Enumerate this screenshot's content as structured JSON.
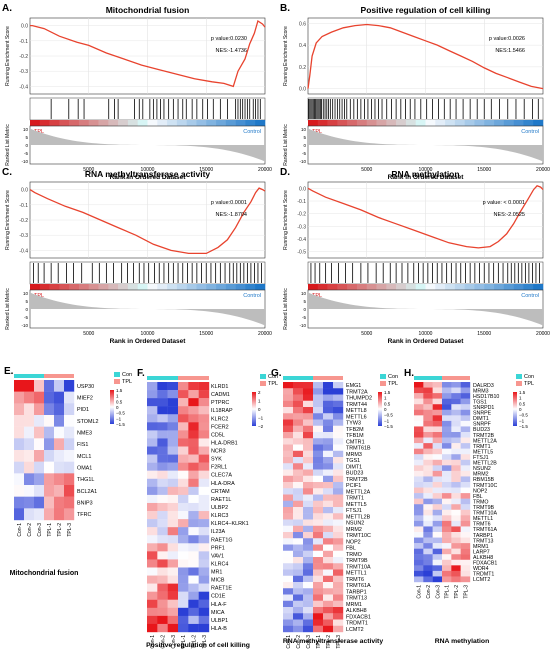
{
  "gsea_panels": [
    {
      "letter": "A.",
      "title": "Mitochondrial fusion",
      "pvalue_label": "p value:0.0230",
      "nes_label": "NES:-1.4736",
      "y_ticks": [
        "0.0",
        "-0.1",
        "-0.2",
        "-0.3",
        "-0.4"
      ],
      "ylim": [
        -0.45,
        0.05
      ],
      "curve": [
        [
          0,
          0
        ],
        [
          200,
          0
        ],
        [
          1200,
          -0.02
        ],
        [
          2500,
          -0.07
        ],
        [
          4000,
          -0.11
        ],
        [
          5000,
          -0.13
        ],
        [
          6500,
          -0.18
        ],
        [
          8000,
          -0.22
        ],
        [
          9500,
          -0.26
        ],
        [
          11000,
          -0.29
        ],
        [
          12500,
          -0.32
        ],
        [
          14000,
          -0.35
        ],
        [
          15500,
          -0.37
        ],
        [
          16500,
          -0.38
        ],
        [
          17300,
          -0.4
        ],
        [
          17700,
          -0.3
        ],
        [
          18300,
          -0.22
        ],
        [
          18700,
          -0.12
        ],
        [
          19100,
          -0.05
        ],
        [
          19400,
          0.03
        ],
        [
          19800,
          0.01
        ],
        [
          20000,
          -0.01
        ]
      ],
      "hits": [
        1800,
        3300,
        4100,
        4600,
        6700,
        7200,
        7500,
        8900,
        9300,
        9600,
        10200,
        10500,
        10800,
        11100,
        11400,
        11800,
        12200,
        12600,
        13000,
        13300,
        13800,
        14200,
        14700,
        15100,
        15600,
        16200,
        16800,
        17500,
        17700,
        17900,
        18100,
        18300,
        18500,
        18700,
        19000,
        19200,
        19400,
        19600
      ]
    },
    {
      "letter": "B.",
      "title": "Positive regulation of cell killing",
      "pvalue_label": "p value:0.0026",
      "nes_label": "NES:1.5466",
      "y_ticks": [
        "0.6",
        "0.4",
        "0.2",
        "0.0"
      ],
      "ylim": [
        -0.05,
        0.65
      ],
      "curve": [
        [
          0,
          0
        ],
        [
          150,
          0.12
        ],
        [
          350,
          0.3
        ],
        [
          700,
          0.42
        ],
        [
          1200,
          0.48
        ],
        [
          2000,
          0.52
        ],
        [
          3000,
          0.56
        ],
        [
          4000,
          0.58
        ],
        [
          5000,
          0.59
        ],
        [
          6000,
          0.58
        ],
        [
          7000,
          0.56
        ],
        [
          8000,
          0.52
        ],
        [
          9000,
          0.48
        ],
        [
          10000,
          0.44
        ],
        [
          11000,
          0.4
        ],
        [
          12000,
          0.35
        ],
        [
          13000,
          0.3
        ],
        [
          14000,
          0.25
        ],
        [
          15000,
          0.19
        ],
        [
          16000,
          0.14
        ],
        [
          17000,
          0.1
        ],
        [
          18000,
          0.06
        ],
        [
          19000,
          0.02
        ],
        [
          20000,
          0
        ]
      ],
      "hits": [
        50,
        150,
        250,
        350,
        450,
        550,
        650,
        750,
        850,
        950,
        1050,
        1150,
        1300,
        1450,
        1600,
        1750,
        1900,
        2100,
        2300,
        2500,
        2700,
        2900,
        3100,
        3300,
        3600,
        3900,
        4200,
        4500,
        4800,
        5100,
        5400,
        5700,
        6000,
        6300,
        6700,
        7100,
        7500,
        7900,
        8300,
        8700,
        9100,
        9600,
        10100,
        10600,
        11100,
        11600,
        12100,
        12600,
        13200,
        13800,
        14400,
        15000,
        15600,
        16300,
        17000,
        17700,
        18400,
        19100,
        19600
      ]
    },
    {
      "letter": "C.",
      "title": "RNA methyltransferase activity",
      "pvalue_label": "p value:0.0001",
      "nes_label": "NES:-1.8704",
      "y_ticks": [
        "0.0",
        "-0.1",
        "-0.2",
        "-0.3",
        "-0.4"
      ],
      "ylim": [
        -0.45,
        0.05
      ],
      "curve": [
        [
          0,
          0
        ],
        [
          400,
          -0.02
        ],
        [
          1500,
          -0.06
        ],
        [
          3000,
          -0.11
        ],
        [
          4500,
          -0.15
        ],
        [
          6000,
          -0.2
        ],
        [
          7500,
          -0.25
        ],
        [
          9000,
          -0.3
        ],
        [
          10500,
          -0.36
        ],
        [
          12000,
          -0.4
        ],
        [
          13500,
          -0.42
        ],
        [
          15000,
          -0.42
        ],
        [
          16000,
          -0.38
        ],
        [
          16800,
          -0.33
        ],
        [
          17500,
          -0.25
        ],
        [
          18200,
          -0.15
        ],
        [
          18800,
          -0.08
        ],
        [
          19200,
          -0.02
        ],
        [
          19500,
          0.01
        ],
        [
          19800,
          0
        ],
        [
          20000,
          -0.01
        ]
      ],
      "hits": [
        300,
        700,
        1200,
        1800,
        2400,
        3100,
        3700,
        4400,
        5300,
        5900,
        6500,
        7100,
        7800,
        8300,
        8800,
        9300,
        9700,
        10100,
        10600,
        11000,
        11400,
        11800,
        12200,
        12600,
        13000,
        13400,
        13800,
        14200,
        14600,
        15000,
        15400,
        15800,
        16200,
        16600,
        17000,
        17300,
        17600,
        17900,
        18200,
        18500,
        18800,
        19100,
        19400,
        19700
      ]
    },
    {
      "letter": "D.",
      "title": "RNA methylation",
      "pvalue_label": "p value: < 0.0001",
      "nes_label": "NES:-2.0525",
      "y_ticks": [
        "0.0",
        "-0.1",
        "-0.2",
        "-0.3",
        "-0.4",
        "-0.5"
      ],
      "ylim": [
        -0.55,
        0.05
      ],
      "curve": [
        [
          0,
          0
        ],
        [
          400,
          -0.02
        ],
        [
          1500,
          -0.07
        ],
        [
          3000,
          -0.12
        ],
        [
          4500,
          -0.17
        ],
        [
          6000,
          -0.23
        ],
        [
          7500,
          -0.28
        ],
        [
          9000,
          -0.33
        ],
        [
          10500,
          -0.38
        ],
        [
          12000,
          -0.43
        ],
        [
          13500,
          -0.46
        ],
        [
          14500,
          -0.47
        ],
        [
          15500,
          -0.46
        ],
        [
          16200,
          -0.42
        ],
        [
          16900,
          -0.36
        ],
        [
          17500,
          -0.28
        ],
        [
          18100,
          -0.18
        ],
        [
          18700,
          -0.09
        ],
        [
          19200,
          -0.01
        ],
        [
          19500,
          0.02
        ],
        [
          19800,
          0.01
        ],
        [
          20000,
          -0.01
        ]
      ],
      "hits": [
        250,
        600,
        1000,
        1500,
        2000,
        2600,
        3200,
        3800,
        4500,
        5100,
        5800,
        6400,
        7000,
        7500,
        8000,
        8500,
        9000,
        9400,
        9800,
        10200,
        10600,
        11000,
        11400,
        11800,
        12200,
        12600,
        13000,
        13400,
        13800,
        14200,
        14600,
        15000,
        15400,
        15800,
        16200,
        16600,
        17000,
        17300,
        17600,
        17900,
        18200,
        18500,
        18800,
        19100,
        19400,
        19700
      ]
    }
  ],
  "gsea_common": {
    "ylabel_top": "Running Enrichment Score",
    "ylabel_bottom": "Ranked List Metric",
    "xlabel": "Rank in Ordered Dataset",
    "x_ticks": [
      "5000",
      "10000",
      "15000",
      "20000"
    ],
    "metric_ticks": [
      "10",
      "5",
      "0",
      "-5",
      "-10"
    ],
    "tpl_label": "TPL",
    "control_label": "Control",
    "colors": {
      "curve": "#e8432e",
      "tpl": "#d7191c",
      "control": "#1f78c8",
      "metric_fill": "#bdbdbd"
    }
  },
  "heatmaps": [
    {
      "letter": "E.",
      "caption": "Mitochondrial fusion",
      "genes": [
        "USP30",
        "MIEF2",
        "PID1",
        "STOML2",
        "NME3",
        "FIS1",
        "MCL1",
        "OMA1",
        "THG1L",
        "BCL2A1",
        "BNIP3",
        "TFRC"
      ],
      "samples": [
        "Con-1",
        "Con-2",
        "Con-3",
        "TPL-1",
        "TPL-2",
        "TPL-3"
      ],
      "scale_ticks": [
        "1.5",
        "1",
        "0.5",
        "0",
        "−0.5",
        "−1",
        "−1.5"
      ],
      "legend": [
        "Con",
        "TPL"
      ]
    },
    {
      "letter": "F.",
      "caption": "Positive regulation of cell killing",
      "genes": [
        "KLRD1",
        "CADM1",
        "PTPRC",
        "IL18RAP",
        "KLRC2",
        "FCER2",
        "CD5L",
        "HLA-DRB1",
        "NCR3",
        "SYK",
        "F2RL1",
        "CLEC7A",
        "HLA-DRA",
        "CRTAM",
        "RAET1L",
        "ULBP2",
        "KLRC3",
        "KLRC4−KLRK1",
        "IL23A",
        "RAET1G",
        "PRF1",
        "VAV1",
        "KLRC4",
        "MR1",
        "MICB",
        "RAET1E",
        "CD1E",
        "HLA-F",
        "MICA",
        "ULBP1",
        "HLA-B"
      ],
      "samples": [
        "Con-1",
        "Con-2",
        "Con-3",
        "TPL-1",
        "TPL-2",
        "TPL-3"
      ],
      "scale_ticks": [
        "2",
        "1",
        "0",
        "−1",
        "−2"
      ],
      "legend": [
        "Con",
        "TPL"
      ]
    },
    {
      "letter": "G.",
      "caption": "RNA methyltransferase activity",
      "genes": [
        "EMG1",
        "TRMT2A",
        "THUMPD2",
        "TRMT44",
        "METTL8",
        "METTL6",
        "TYW3",
        "TFB2M",
        "TFB1M",
        "CMTR1",
        "TRMT61B",
        "MRM3",
        "TGS1",
        "DIMT1",
        "BUD23",
        "TRMT2B",
        "PCIF1",
        "METTL2A",
        "TRMT1",
        "METTL5",
        "FTSJ1",
        "METTL2B",
        "NSUN2",
        "MRM2",
        "TRMT10C",
        "NOP2",
        "FBL",
        "TRMO",
        "TRMT9B",
        "TRMT10A",
        "METTL1",
        "TRMT6",
        "TRMT61A",
        "TARBP1",
        "TRMT13",
        "MRM1",
        "ALKBH8",
        "FDXACB1",
        "TRDMT1",
        "LCMT2"
      ],
      "samples": [
        "Con-1",
        "Con-2",
        "Con-3",
        "TPL-1",
        "TPL-2",
        "TPL-3"
      ],
      "scale_ticks": [
        "1.5",
        "1",
        "0.5",
        "0",
        "−0.5",
        "−1",
        "−1.5"
      ],
      "legend": [
        "Con",
        "TPL"
      ]
    },
    {
      "letter": "H.",
      "caption": "RNA methylation",
      "genes": [
        "DALRD3",
        "MRM3",
        "HSD17B10",
        "TGS1",
        "SNRPD1",
        "SNRPE",
        "DIMT1",
        "SNRPF",
        "BUD23",
        "TRMT2B",
        "METTL2A",
        "TRMT1",
        "METTL5",
        "FTSJ1",
        "METTL2B",
        "NSUN2",
        "MRM2",
        "RBM15B",
        "TRMT10C",
        "NOP2",
        "FBL",
        "TRMO",
        "TRMT9B",
        "TRMT10A",
        "METTL1",
        "TRMT6",
        "TRMT61A",
        "TARBP1",
        "TRMT13",
        "MRM1",
        "LARP7",
        "ALKBH8",
        "FDXACB1",
        "WDR4",
        "TRDMT1",
        "LCMT2"
      ],
      "samples": [
        "Con-1",
        "Con-2",
        "Con-3",
        "TPL-1",
        "TPL-2",
        "TPL-3"
      ],
      "scale_ticks": [
        "1.5",
        "1",
        "0.5",
        "0",
        "−0.5",
        "−1",
        "−1.5"
      ],
      "legend": [
        "Con",
        "TPL"
      ]
    }
  ],
  "heatmap_colors": {
    "high": "#e8161b",
    "mid": "#ffffff",
    "low": "#2b3fd6",
    "con": "#3bd6d6",
    "tpl": "#f7968f"
  },
  "chart_data": [
    {
      "type": "line",
      "title": "Mitochondrial fusion",
      "xlabel": "Rank in Ordered Dataset",
      "ylabel": "Running Enrichment Score",
      "xlim": [
        0,
        20000
      ],
      "ylim": [
        -0.45,
        0.05
      ],
      "annotations": [
        "p value:0.0230",
        "NES:-1.4736"
      ]
    },
    {
      "type": "line",
      "title": "Positive regulation of cell killing",
      "xlabel": "Rank in Ordered Dataset",
      "ylabel": "Running Enrichment Score",
      "xlim": [
        0,
        20000
      ],
      "ylim": [
        -0.05,
        0.65
      ],
      "annotations": [
        "p value:0.0026",
        "NES:1.5466"
      ]
    },
    {
      "type": "line",
      "title": "RNA methyltransferase activity",
      "xlabel": "Rank in Ordered Dataset",
      "ylabel": "Running Enrichment Score",
      "xlim": [
        0,
        20000
      ],
      "ylim": [
        -0.45,
        0.05
      ],
      "annotations": [
        "p value:0.0001",
        "NES:-1.8704"
      ]
    },
    {
      "type": "line",
      "title": "RNA methylation",
      "xlabel": "Rank in Ordered Dataset",
      "ylabel": "Running Enrichment Score",
      "xlim": [
        0,
        20000
      ],
      "ylim": [
        -0.55,
        0.05
      ],
      "annotations": [
        "p value: < 0.0001",
        "NES:-2.0525"
      ]
    },
    {
      "type": "heatmap",
      "title": "Mitochondrial fusion",
      "rows": 12,
      "columns": 6
    },
    {
      "type": "heatmap",
      "title": "Positive regulation of cell killing",
      "rows": 31,
      "columns": 6
    },
    {
      "type": "heatmap",
      "title": "RNA methyltransferase activity",
      "rows": 40,
      "columns": 6
    },
    {
      "type": "heatmap",
      "title": "RNA methylation",
      "rows": 36,
      "columns": 6
    }
  ]
}
